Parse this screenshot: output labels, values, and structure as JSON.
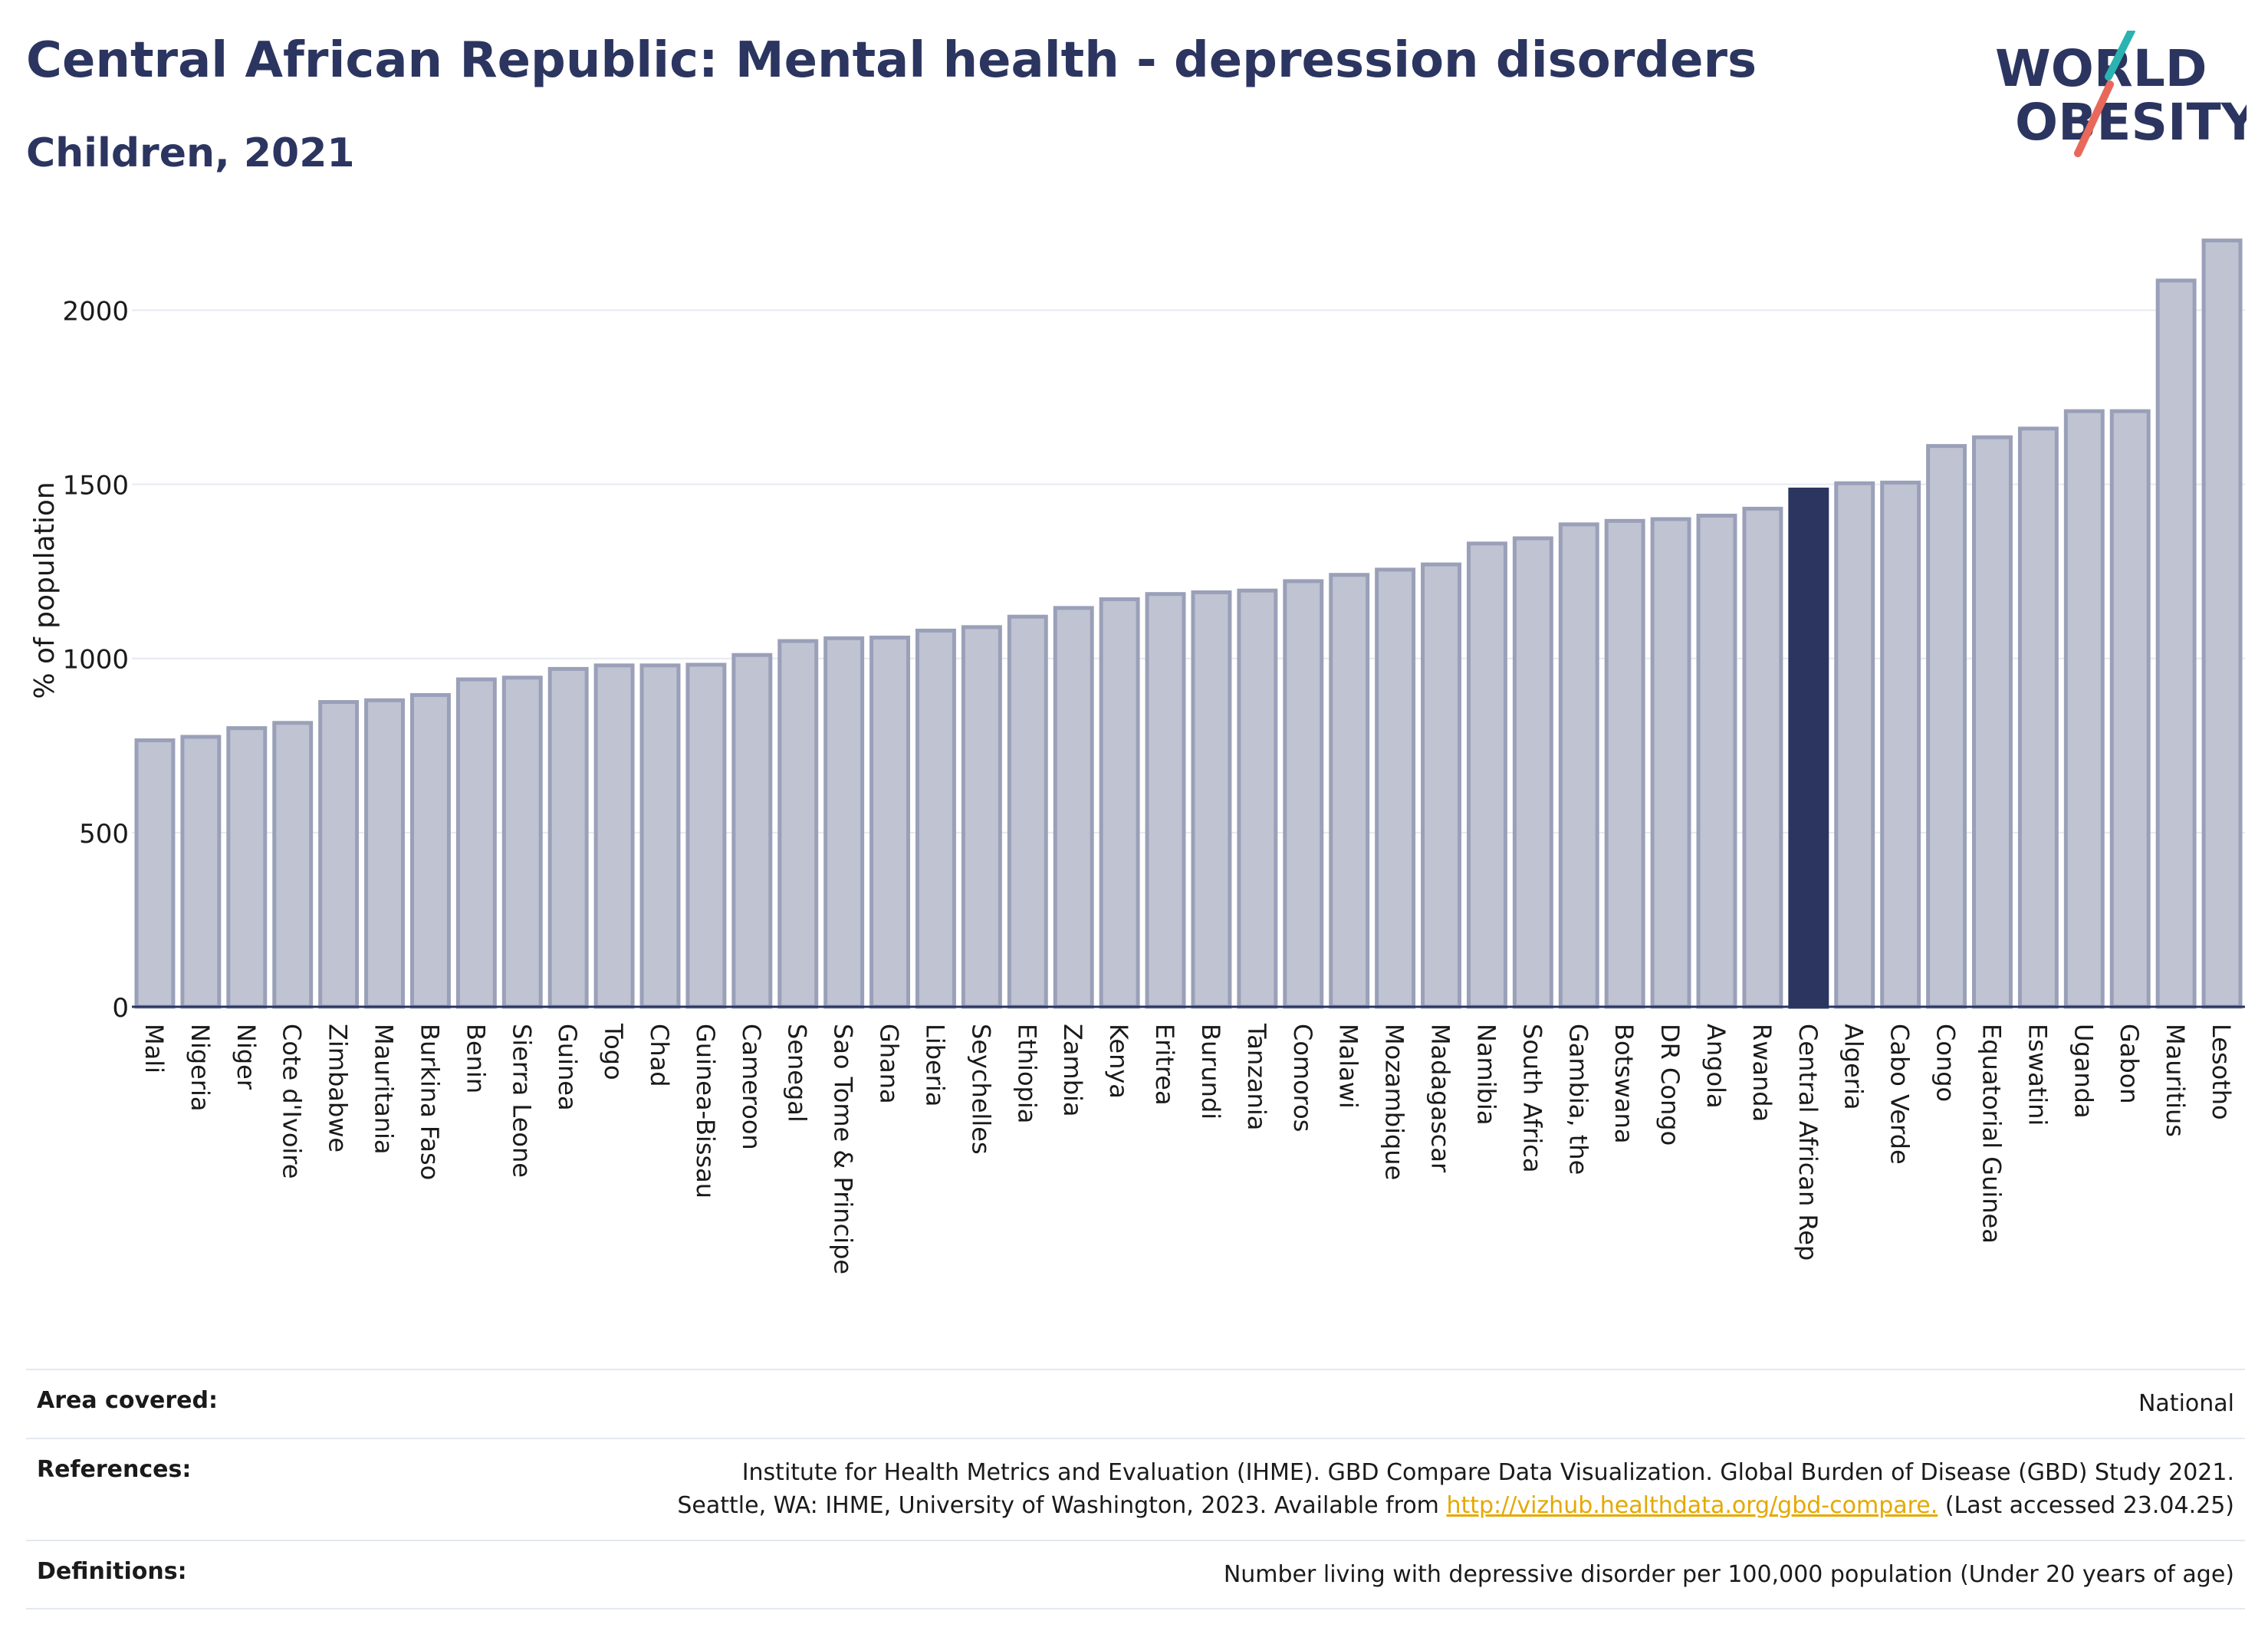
{
  "header": {
    "title": "Central African Republic: Mental health - depression disorders",
    "subtitle": "Children, 2021"
  },
  "logo": {
    "line1": "WORLD",
    "line2": "OBESITY",
    "text_color": "#2b3560",
    "accent_teal": "#2ab3b0",
    "accent_coral": "#e8685a"
  },
  "colors": {
    "bar_fill": "#bfc3d2",
    "bar_stroke": "#9aa0b8",
    "highlight_fill": "#2b3560",
    "grid": "#e6e9f0",
    "axis": "#2b3560"
  },
  "chart_data": {
    "type": "bar",
    "ylabel": "% of population",
    "ylim": [
      0,
      2230
    ],
    "yticks": [
      0,
      500,
      1000,
      1500,
      2000
    ],
    "grid": true,
    "highlight": "Central African Rep",
    "categories": [
      "Mali",
      "Nigeria",
      "Niger",
      "Cote d'Ivoire",
      "Zimbabwe",
      "Mauritania",
      "Burkina Faso",
      "Benin",
      "Sierra Leone",
      "Guinea",
      "Togo",
      "Chad",
      "Guinea-Bissau",
      "Cameroon",
      "Senegal",
      "Sao Tome & Principe",
      "Ghana",
      "Liberia",
      "Seychelles",
      "Ethiopia",
      "Zambia",
      "Kenya",
      "Eritrea",
      "Burundi",
      "Tanzania",
      "Comoros",
      "Malawi",
      "Mozambique",
      "Madagascar",
      "Namibia",
      "South Africa",
      "Gambia, the",
      "Botswana",
      "DR Congo",
      "Angola",
      "Rwanda",
      "Central African Rep",
      "Algeria",
      "Cabo Verde",
      "Congo",
      "Equatorial Guinea",
      "Eswatini",
      "Uganda",
      "Gabon",
      "Mauritius",
      "Lesotho"
    ],
    "values": [
      765,
      775,
      800,
      815,
      875,
      880,
      895,
      940,
      945,
      970,
      980,
      980,
      982,
      1010,
      1050,
      1058,
      1060,
      1080,
      1090,
      1120,
      1145,
      1170,
      1185,
      1190,
      1195,
      1222,
      1240,
      1255,
      1270,
      1330,
      1345,
      1385,
      1395,
      1400,
      1410,
      1430,
      1485,
      1503,
      1505,
      1610,
      1635,
      1660,
      1710,
      1710,
      2085,
      2200
    ]
  },
  "footer": {
    "area_label": "Area covered:",
    "area_value": "National",
    "references_label": "References:",
    "references_line1": "Institute for Health Metrics and Evaluation (IHME). GBD Compare Data Visualization. Global Burden of Disease (GBD) Study 2021.",
    "references_line2_pre": "Seattle, WA: IHME, University of Washington, 2023. Available from ",
    "references_link": "http://vizhub.healthdata.org/gbd-compare.",
    "references_line2_post": " (Last accessed 23.04.25)",
    "definitions_label": "Definitions:",
    "definitions_value": "Number living with depressive disorder per 100,000 population (Under 20 years of age)"
  }
}
